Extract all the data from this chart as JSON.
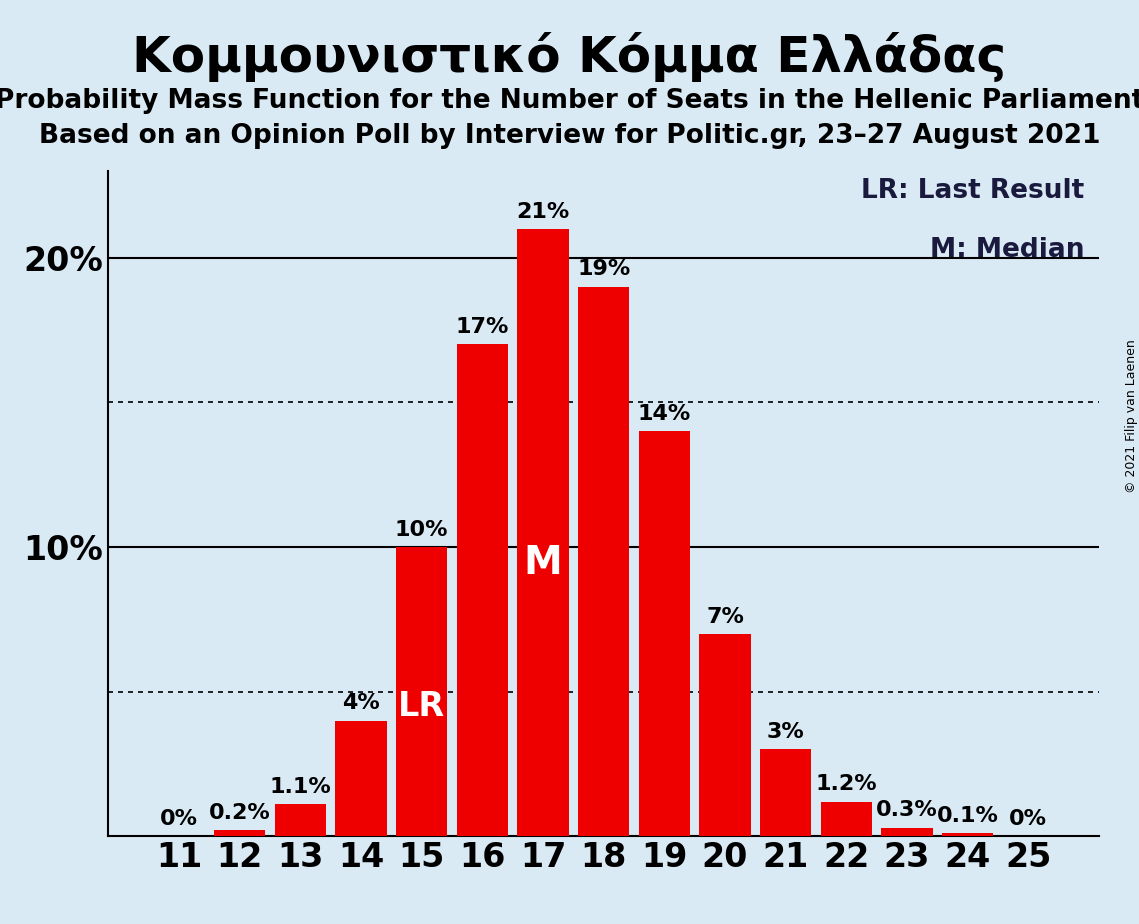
{
  "title": "Κομμουνιστικό Κόμμα Ελλάδας",
  "subtitle1": "Probability Mass Function for the Number of Seats in the Hellenic Parliament",
  "subtitle2": "Based on an Opinion Poll by Interview for Politic.gr, 23–27 August 2021",
  "copyright": "© 2021 Filip van Laenen",
  "seats": [
    11,
    12,
    13,
    14,
    15,
    16,
    17,
    18,
    19,
    20,
    21,
    22,
    23,
    24,
    25
  ],
  "probabilities": [
    0.0,
    0.2,
    1.1,
    4.0,
    10.0,
    17.0,
    21.0,
    19.0,
    14.0,
    7.0,
    3.0,
    1.2,
    0.3,
    0.1,
    0.0
  ],
  "bar_color": "#ee0000",
  "background_color": "#daeaf5",
  "lr_seat": 15,
  "median_seat": 17,
  "yticks": [
    10,
    20
  ],
  "dotted_lines": [
    5,
    15
  ],
  "ylim": [
    0,
    23
  ],
  "legend_lr": "LR: Last Result",
  "legend_m": "M: Median",
  "title_fontsize": 36,
  "subtitle_fontsize": 19,
  "tick_fontsize": 24,
  "ytick_fontsize": 24,
  "bar_label_fontsize": 16,
  "inside_label_lr_fontsize": 24,
  "inside_label_m_fontsize": 28,
  "legend_fontsize": 19,
  "copyright_fontsize": 9
}
